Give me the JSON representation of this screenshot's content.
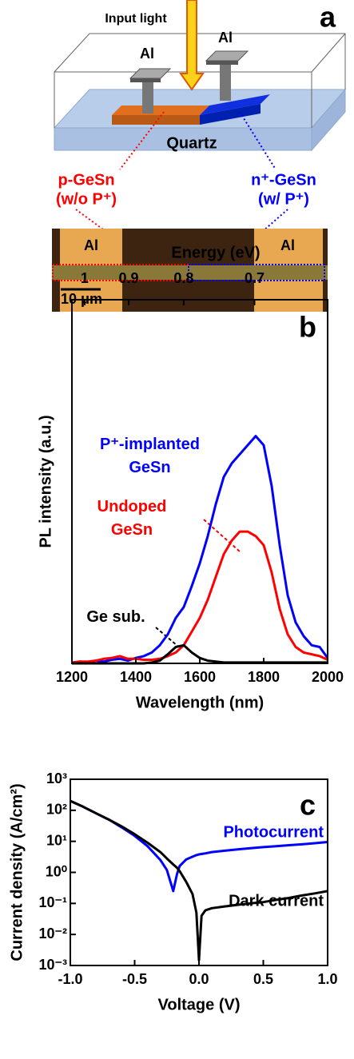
{
  "panel_a": {
    "letter": "a",
    "input_light": "Input light",
    "al_left": "Al",
    "al_right": "Al",
    "substrate": "Quartz",
    "p_label": "p-GeSn",
    "p_note": "(w/o P⁺)",
    "n_label": "n⁺-GeSn",
    "n_note": "(w/ P⁺)",
    "micro_al_left": "Al",
    "micro_al_right": "Al",
    "scale_bar": "10 μm"
  },
  "chart_data": [
    {
      "type": "line",
      "panel": "b",
      "xlabel": "Wavelength (nm)",
      "ylabel": "PL intensity (a.u.)",
      "x2label": "Energy (eV)",
      "xlim": [
        1200,
        2000
      ],
      "xticks": [
        1200,
        1400,
        1600,
        1800,
        2000
      ],
      "x2ticks": [
        1,
        0.9,
        0.8,
        0.7
      ],
      "ylim": [
        0,
        4
      ],
      "grid": false,
      "x": [
        1200,
        1225,
        1250,
        1275,
        1300,
        1325,
        1350,
        1375,
        1400,
        1425,
        1450,
        1475,
        1500,
        1525,
        1550,
        1575,
        1600,
        1625,
        1650,
        1675,
        1700,
        1725,
        1750,
        1775,
        1800,
        1825,
        1850,
        1875,
        1900,
        1925,
        1950,
        1975,
        2000
      ],
      "series": [
        {
          "name": "P⁺-implanted GeSn",
          "color": "#0000ff",
          "values": [
            0,
            0.02,
            0.01,
            0.03,
            0.02,
            0.04,
            0.05,
            0.03,
            0.06,
            0.08,
            0.12,
            0.2,
            0.32,
            0.5,
            0.62,
            0.85,
            1.1,
            1.4,
            1.75,
            2.05,
            2.2,
            2.3,
            2.4,
            2.5,
            2.4,
            1.95,
            1.3,
            0.75,
            0.45,
            0.3,
            0.2,
            0.18,
            0.06
          ]
        },
        {
          "name": "Undoped GeSn",
          "color": "#ff0000",
          "values": [
            0.01,
            0.02,
            0.02,
            0.03,
            0.05,
            0.06,
            0.08,
            0.05,
            0.05,
            0.04,
            0.04,
            0.05,
            0.08,
            0.12,
            0.2,
            0.35,
            0.5,
            0.7,
            0.95,
            1.2,
            1.35,
            1.45,
            1.45,
            1.4,
            1.3,
            1.0,
            0.6,
            0.32,
            0.18,
            0.12,
            0.1,
            0.08,
            0.04
          ]
        },
        {
          "name": "Ge sub.",
          "color": "#000000",
          "values": [
            0,
            0,
            0,
            0,
            0,
            0,
            0,
            0,
            0,
            0,
            0.01,
            0.03,
            0.1,
            0.18,
            0.2,
            0.12,
            0.06,
            0.03,
            0.02,
            0.01,
            0.01,
            0.01,
            0.01,
            0.01,
            0.01,
            0.01,
            0.01,
            0.01,
            0.01,
            0.01,
            0.01,
            0.01,
            0.01
          ]
        }
      ]
    },
    {
      "type": "line",
      "panel": "c",
      "xlabel": "Voltage (V)",
      "ylabel": "Current density (A/cm²)",
      "log_y": true,
      "xlim": [
        -1,
        1
      ],
      "xticks": [
        {
          "value": -1,
          "label": "-1.0"
        },
        {
          "value": -0.5,
          "label": "-0.5"
        },
        {
          "value": 0,
          "label": "0.0"
        },
        0.5,
        {
          "value": 1,
          "label": "1.0"
        }
      ],
      "ylim": [
        0.001,
        1000
      ],
      "yticks": [
        {
          "value": 0.001,
          "label": "10⁻³"
        },
        {
          "value": 0.01,
          "label": "10⁻²"
        },
        {
          "value": 0.1,
          "label": "10⁻¹"
        },
        {
          "value": 1,
          "label": "10⁰"
        },
        {
          "value": 10,
          "label": "10¹"
        },
        {
          "value": 100,
          "label": "10²"
        },
        {
          "value": 1000,
          "label": "10³"
        }
      ],
      "grid": false,
      "x": [
        -1,
        -0.9,
        -0.8,
        -0.7,
        -0.6,
        -0.5,
        -0.4,
        -0.3,
        -0.25,
        -0.2,
        -0.17,
        -0.15,
        -0.1,
        -0.05,
        -0.02,
        0,
        0.02,
        0.05,
        0.1,
        0.2,
        0.3,
        0.4,
        0.5,
        0.6,
        0.7,
        0.8,
        0.9,
        1
      ],
      "series": [
        {
          "name": "Photocurrent",
          "color": "#0000ff",
          "values": [
            200,
            130,
            80,
            50,
            28,
            15,
            7,
            2.5,
            1.2,
            0.25,
            0.9,
            1.6,
            2.6,
            3.2,
            3.6,
            3.8,
            3.9,
            4.1,
            4.5,
            5,
            5.5,
            6,
            6.5,
            7,
            7.5,
            8,
            8.7,
            9.5
          ]
        },
        {
          "name": "Dark current",
          "color": "#000000",
          "values": [
            200,
            130,
            80,
            50,
            30,
            17,
            9,
            4.5,
            2.8,
            1.8,
            1.4,
            1.1,
            0.5,
            0.2,
            0.05,
            0.0015,
            0.04,
            0.06,
            0.07,
            0.08,
            0.09,
            0.1,
            0.11,
            0.13,
            0.15,
            0.18,
            0.21,
            0.25
          ]
        }
      ]
    }
  ]
}
